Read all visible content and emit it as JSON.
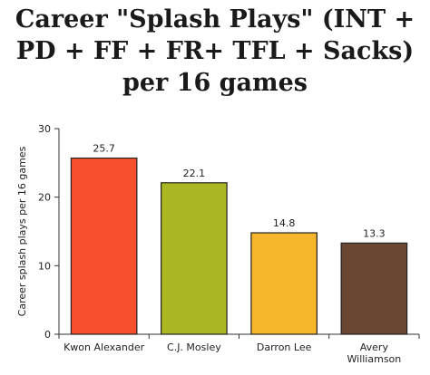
{
  "chart_data": {
    "type": "bar",
    "title": "Career \"Splash Plays\" (INT + PD + FF + FR+ TFL + Sacks) per 16 games",
    "xlabel": "",
    "ylabel": "Career splash plays per 16 games",
    "categories": [
      "Kwon Alexander",
      "C.J. Mosley",
      "Darron Lee",
      "Avery Williamson"
    ],
    "category_lines": [
      [
        "Kwon Alexander"
      ],
      [
        "C.J. Mosley"
      ],
      [
        "Darron Lee"
      ],
      [
        "Avery",
        "Williamson"
      ]
    ],
    "values": [
      25.7,
      22.1,
      14.8,
      13.3
    ],
    "value_labels": [
      "25.7",
      "22.1",
      "14.8",
      "13.3"
    ],
    "colors": [
      "#f84f2c",
      "#a9b822",
      "#f6b72c",
      "#6a4731"
    ],
    "ylim": [
      0,
      30
    ],
    "yticks": [
      0,
      10,
      20,
      30
    ],
    "grid": false,
    "legend": "none"
  }
}
